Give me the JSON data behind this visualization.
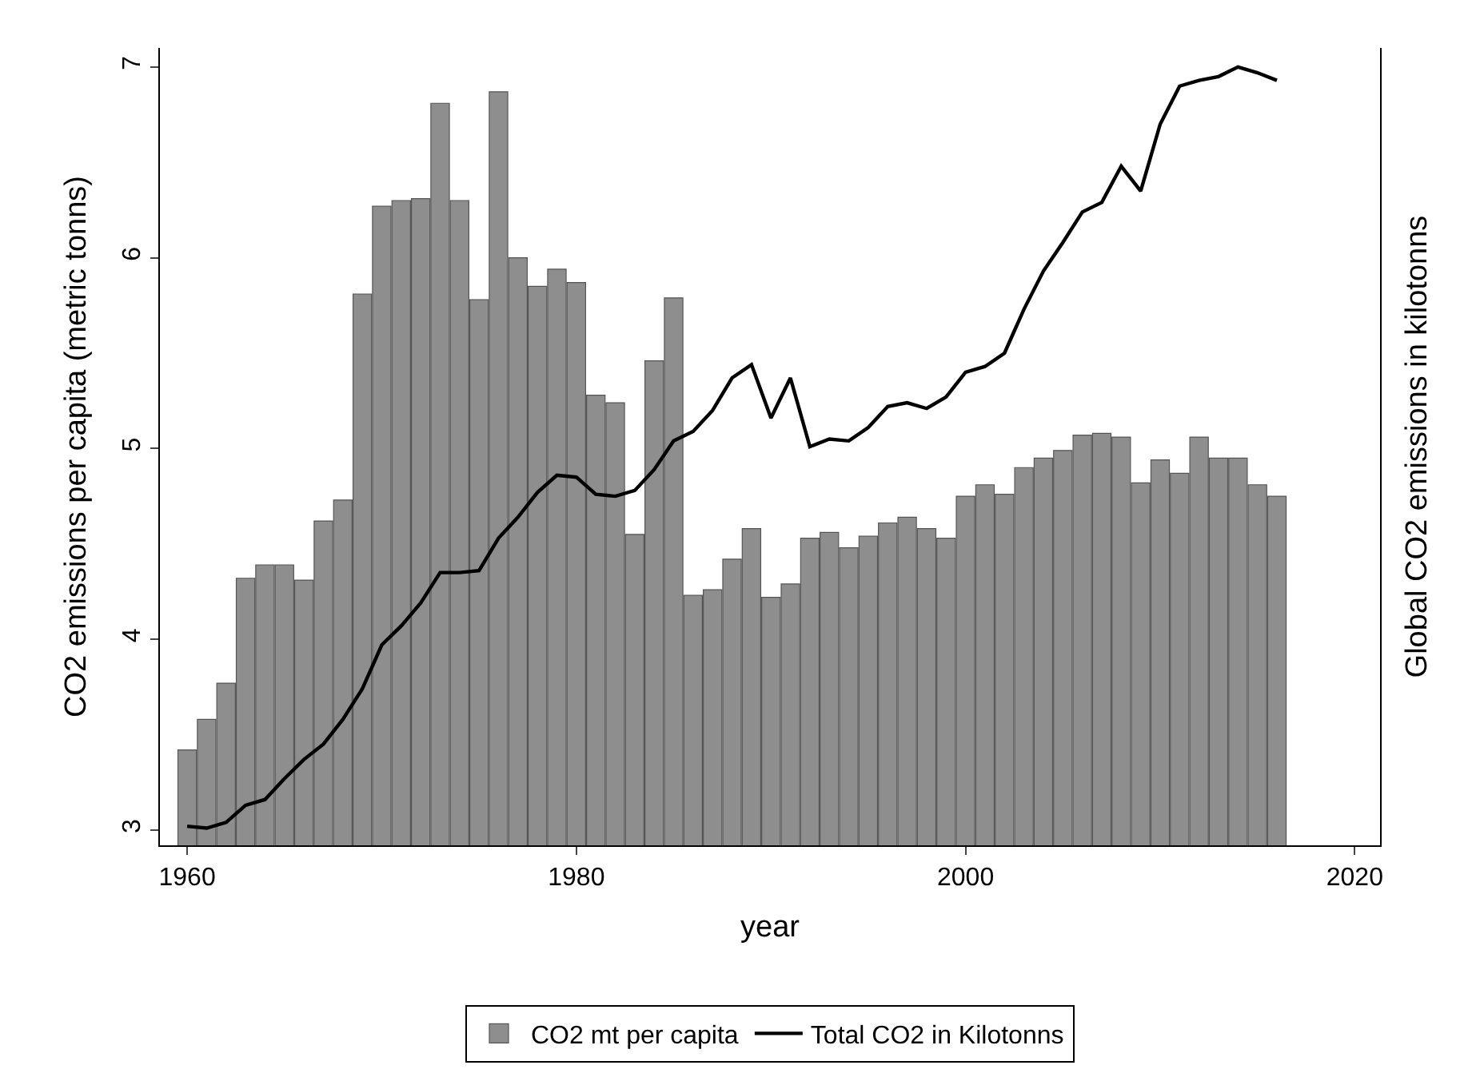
{
  "chart_data": {
    "type": "bar",
    "xlabel": "year",
    "ylabel": "CO2 emissions per capita (metric tonns)",
    "y2label": "Global CO2 emissions in kilotonns",
    "x": [
      1960,
      1961,
      1962,
      1963,
      1964,
      1965,
      1966,
      1967,
      1968,
      1969,
      1970,
      1971,
      1972,
      1973,
      1974,
      1975,
      1976,
      1977,
      1978,
      1979,
      1980,
      1981,
      1982,
      1983,
      1984,
      1985,
      1986,
      1987,
      1988,
      1989,
      1990,
      1991,
      1992,
      1993,
      1994,
      1995,
      1996,
      1997,
      1998,
      1999,
      2000,
      2001,
      2002,
      2003,
      2004,
      2005,
      2006,
      2007,
      2008,
      2009,
      2010,
      2011,
      2012,
      2013,
      2014,
      2015,
      2016
    ],
    "series": [
      {
        "name": "CO2 mt per capita",
        "color": "#8e8e8e",
        "values": [
          3.42,
          3.58,
          3.77,
          4.32,
          4.39,
          4.39,
          4.31,
          4.62,
          4.73,
          5.81,
          6.27,
          6.3,
          6.31,
          6.81,
          6.3,
          5.78,
          6.87,
          6.0,
          5.85,
          5.94,
          5.87,
          5.28,
          5.24,
          4.55,
          5.46,
          5.79,
          4.23,
          4.26,
          4.42,
          4.58,
          4.22,
          4.29,
          4.53,
          4.56,
          4.48,
          4.54,
          4.61,
          4.64,
          4.58,
          4.53,
          4.75,
          4.81,
          4.76,
          4.9,
          4.95,
          4.99,
          5.07,
          5.08,
          5.06,
          4.82,
          4.94,
          4.87,
          5.06,
          4.95,
          4.95,
          4.81,
          4.75
        ]
      },
      {
        "name": "Total CO2 in Kilotonns",
        "type": "line",
        "color": "#000000",
        "values": [
          3.02,
          3.01,
          3.04,
          3.13,
          3.16,
          3.27,
          3.37,
          3.45,
          3.58,
          3.74,
          3.97,
          4.07,
          4.19,
          4.35,
          4.35,
          4.36,
          4.53,
          4.64,
          4.77,
          4.86,
          4.85,
          4.76,
          4.75,
          4.78,
          4.89,
          5.04,
          5.09,
          5.2,
          5.37,
          5.44,
          5.16,
          5.37,
          5.01,
          5.05,
          5.04,
          5.11,
          5.22,
          5.24,
          5.21,
          5.27,
          5.4,
          5.43,
          5.5,
          5.73,
          5.93,
          6.08,
          6.24,
          6.29,
          6.48,
          6.35,
          6.7,
          6.9,
          6.93,
          6.95,
          7.0,
          6.97,
          6.93
        ]
      }
    ],
    "xlim": [
      1958.6,
      2021.3
    ],
    "xticks": [
      1960,
      1980,
      2000,
      2020
    ],
    "ylim": [
      2.92,
      7.1
    ],
    "yticks": [
      3,
      4,
      5,
      6,
      7
    ],
    "grid": false,
    "legend": "bottom",
    "marker": "none",
    "line_style": "solid"
  }
}
